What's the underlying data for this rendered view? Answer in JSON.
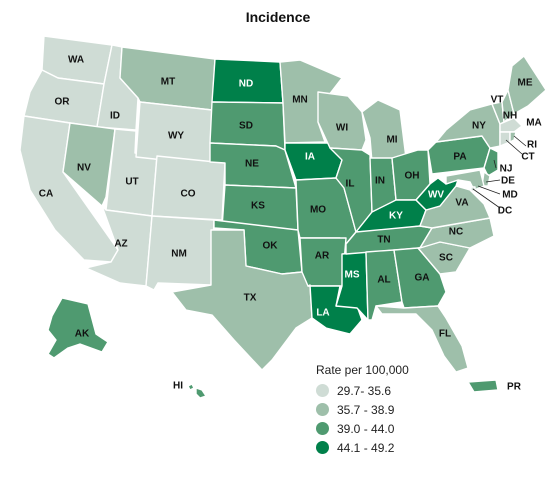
{
  "title": "Incidence",
  "legend": {
    "title": "Rate per 100,000",
    "bins": [
      {
        "label": "29.7- 35.6",
        "color": "#cfdcd5"
      },
      {
        "label": "35.7 - 38.9",
        "color": "#9ebfaa"
      },
      {
        "label": "39.0 - 44.0",
        "color": "#4f9a70"
      },
      {
        "label": "44.1 - 49.2",
        "color": "#00804a"
      }
    ]
  },
  "states": {
    "WA": 1,
    "OR": 1,
    "CA": 1,
    "ID": 1,
    "NV": 2,
    "UT": 1,
    "AZ": 1,
    "MT": 2,
    "WY": 1,
    "CO": 1,
    "NM": 1,
    "ND": 4,
    "SD": 3,
    "NE": 3,
    "KS": 3,
    "OK": 3,
    "TX": 2,
    "MN": 2,
    "IA": 4,
    "MO": 3,
    "AR": 3,
    "LA": 4,
    "WI": 2,
    "IL": 3,
    "MS": 4,
    "MI": 2,
    "IN": 3,
    "OH": 3,
    "KY": 4,
    "TN": 3,
    "AL": 3,
    "GA": 3,
    "FL": 2,
    "SC": 2,
    "NC": 2,
    "VA": 2,
    "WV": 4,
    "PA": 3,
    "NY": 2,
    "VT": 2,
    "NH": 2,
    "ME": 2,
    "MA": 1,
    "RI": 2,
    "CT": 1,
    "NJ": 3,
    "DE": 2,
    "MD": 2,
    "DC": 1,
    "AK": 3,
    "HI": 3,
    "PR": 3
  }
}
